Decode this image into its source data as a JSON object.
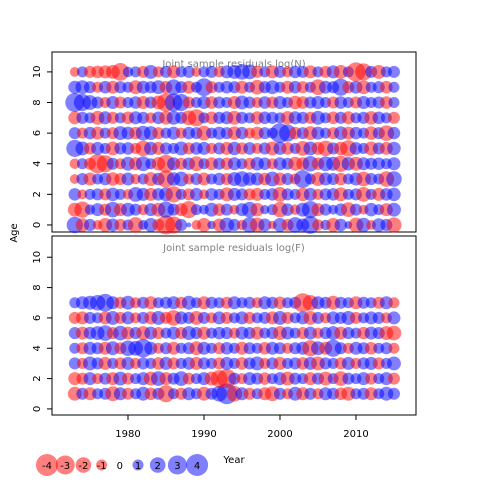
{
  "ylabel": "Age",
  "xlabel": "Year",
  "legend": [
    -4,
    -3,
    -2,
    -1,
    0,
    1,
    2,
    3,
    4
  ],
  "chart_data": [
    {
      "type": "bubble",
      "title": "Joint sample residuals log(N)",
      "xlim": [
        1970,
        2017.9
      ],
      "ylim": [
        -0.46,
        11.3
      ],
      "yticks": [
        0,
        2,
        4,
        6,
        8,
        10
      ],
      "x": [
        1973,
        1974,
        1975,
        1976,
        1977,
        1978,
        1979,
        1980,
        1981,
        1982,
        1983,
        1984,
        1985,
        1986,
        1987,
        1988,
        1989,
        1990,
        1991,
        1992,
        1993,
        1994,
        1995,
        1996,
        1997,
        1998,
        1999,
        2000,
        2001,
        2002,
        2003,
        2004,
        2005,
        2006,
        2007,
        2008,
        2009,
        2010,
        2011,
        2012,
        2013,
        2014,
        2015
      ],
      "ages": [
        0,
        1,
        2,
        3,
        4,
        5,
        6,
        7,
        8,
        9,
        10
      ],
      "values": [
        [
          2.2,
          -1.5,
          1.2,
          -0.8,
          -1.6,
          1.4,
          -1.2,
          1.0,
          -2.0,
          0.8,
          1.6,
          -1.2,
          -3.0,
          -2.4,
          1.2,
          0.2,
          -0.8,
          -1.6,
          0.6,
          -1.4,
          1.8,
          1.2,
          -0.9,
          2.0,
          -1.8,
          1.4,
          -0.6,
          1.6,
          -1.2,
          2.0,
          1.4,
          2.6,
          -1.1,
          0.9,
          -1.6,
          1.3,
          0.5,
          -1.8,
          1.7,
          -0.8,
          1.5,
          1.2,
          -1.9
        ],
        [
          -1.6,
          -2.2,
          0.9,
          1.4,
          -1.2,
          2.0,
          -1.4,
          1.6,
          1.2,
          -1.0,
          1.4,
          -1.6,
          2.2,
          1.2,
          -1.4,
          -2.4,
          1.0,
          0.8,
          1.6,
          -1.3,
          1.2,
          -0.8,
          1.4,
          2.0,
          -1.5,
          0.7,
          1.0,
          -2.0,
          1.3,
          -0.9,
          1.6,
          2.4,
          -1.4,
          1.2,
          0.8,
          1.3,
          -1.8,
          1.2,
          -0.8,
          1.5,
          1.0,
          -1.4,
          1.6
        ],
        [
          1.3,
          -0.8,
          1.0,
          1.2,
          -1.2,
          1.5,
          1.0,
          -0.9,
          1.8,
          1.4,
          -1.4,
          1.3,
          1.6,
          -2.2,
          1.0,
          -1.2,
          1.4,
          -0.8,
          1.3,
          1.0,
          -1.6,
          1.4,
          1.2,
          -1.2,
          -1.4,
          1.0,
          1.3,
          -1.8,
          1.2,
          1.0,
          -1.5,
          1.4,
          -1.0,
          1.2,
          1.3,
          -1.6,
          1.0,
          1.2,
          -1.8,
          1.0,
          -1.4,
          1.3,
          1.5
        ],
        [
          -0.8,
          1.2,
          -1.4,
          1.0,
          1.3,
          -1.5,
          -1.2,
          1.4,
          -0.9,
          1.0,
          -1.6,
          1.3,
          -2.4,
          1.5,
          1.8,
          -1.0,
          1.2,
          -1.4,
          1.0,
          1.3,
          -1.2,
          1.6,
          2.0,
          1.5,
          1.4,
          -1.3,
          1.8,
          -1.4,
          1.2,
          -1.0,
          2.6,
          1.0,
          -1.6,
          1.4,
          1.2,
          -1.3,
          1.0,
          1.4,
          -1.8,
          1.2,
          1.0,
          -2.0,
          2.0
        ],
        [
          -0.9,
          1.0,
          -1.2,
          -3.0,
          -2.4,
          1.2,
          -1.0,
          1.6,
          -1.4,
          1.8,
          1.0,
          -1.5,
          -2.6,
          1.4,
          -1.2,
          1.3,
          -1.8,
          1.0,
          -1.4,
          1.2,
          -1.3,
          1.4,
          1.0,
          -1.2,
          1.5,
          1.3,
          -1.0,
          1.4,
          1.2,
          -1.6,
          -1.4,
          2.0,
          -1.3,
          1.8,
          1.6,
          -2.2,
          1.5,
          -1.6,
          1.4,
          1.2,
          1.3,
          1.0,
          1.4
        ],
        [
          2.4,
          1.6,
          -1.2,
          1.4,
          1.0,
          -1.6,
          1.2,
          1.3,
          -1.0,
          -2.0,
          1.5,
          -1.4,
          1.2,
          1.0,
          1.6,
          -1.2,
          1.3,
          1.4,
          -1.0,
          1.2,
          -1.4,
          1.5,
          -1.2,
          1.3,
          -1.0,
          1.2,
          -1.6,
          1.4,
          -1.3,
          1.0,
          -1.8,
          1.6,
          -1.4,
          -2.0,
          1.2,
          -1.5,
          -2.2,
          1.3,
          1.0,
          -1.6,
          1.2,
          -1.4,
          1.5
        ],
        [
          1.2,
          -1.0,
          1.3,
          -1.4,
          1.0,
          -1.2,
          1.6,
          1.4,
          -1.3,
          1.8,
          1.6,
          -1.2,
          1.0,
          1.4,
          -1.0,
          1.3,
          1.2,
          -1.8,
          1.0,
          1.4,
          1.2,
          -1.5,
          1.3,
          -1.0,
          -1.4,
          1.2,
          1.0,
          3.2,
          2.4,
          -1.3,
          1.2,
          -1.6,
          1.4,
          1.0,
          -1.2,
          1.5,
          -1.4,
          1.3,
          1.0,
          -1.5,
          1.2,
          -2.0,
          1.3
        ],
        [
          -1.4,
          1.2,
          1.0,
          -1.6,
          1.4,
          -1.2,
          1.0,
          -1.3,
          1.4,
          1.2,
          -1.0,
          1.3,
          -1.5,
          1.6,
          1.2,
          -1.8,
          -2.4,
          1.0,
          -1.3,
          1.2,
          1.4,
          -1.6,
          1.2,
          1.0,
          -1.4,
          1.3,
          1.2,
          1.0,
          -1.5,
          1.4,
          1.2,
          -1.2,
          1.6,
          1.0,
          -1.3,
          1.2,
          -1.4,
          1.0,
          1.2,
          -1.5,
          1.3,
          1.0,
          -1.2
        ],
        [
          3.0,
          2.4,
          1.8,
          1.2,
          -1.0,
          1.4,
          -1.2,
          1.0,
          1.3,
          -1.4,
          1.2,
          -1.6,
          -2.8,
          2.6,
          2.4,
          -1.2,
          1.0,
          1.4,
          -1.3,
          1.2,
          1.0,
          -1.4,
          1.6,
          1.2,
          -1.0,
          1.3,
          -1.2,
          1.4,
          1.0,
          -1.5,
          -1.3,
          1.2,
          1.4,
          1.0,
          -1.2,
          1.3,
          1.0,
          -1.2,
          1.4,
          1.0,
          1.2,
          -1.3,
          1.0
        ],
        [
          1.4,
          1.6,
          1.2,
          -1.0,
          1.3,
          -1.4,
          1.2,
          1.0,
          -1.6,
          1.4,
          1.2,
          1.6,
          -1.3,
          2.0,
          1.2,
          -1.4,
          1.0,
          2.6,
          -1.2,
          1.0,
          1.3,
          1.2,
          -1.4,
          1.0,
          -1.8,
          1.2,
          1.6,
          1.0,
          -1.4,
          1.3,
          -1.2,
          1.0,
          -2.0,
          1.4,
          1.2,
          2.4,
          -1.2,
          1.4,
          -1.6,
          1.0,
          1.2,
          -1.3,
          1.0
        ],
        [
          -0.8,
          1.0,
          -1.2,
          -1.3,
          -1.4,
          -1.6,
          -2.6,
          0.9,
          1.0,
          -1.2,
          1.6,
          -1.0,
          1.2,
          -1.4,
          1.0,
          1.2,
          -0.8,
          1.0,
          1.2,
          -1.0,
          1.4,
          1.6,
          2.0,
          1.8,
          -1.2,
          1.0,
          -1.4,
          1.2,
          -1.0,
          1.3,
          1.2,
          -1.4,
          1.0,
          -1.2,
          1.4,
          -1.6,
          1.0,
          -3.0,
          -2.4,
          1.2,
          -1.6,
          1.0,
          1.2
        ]
      ]
    },
    {
      "type": "bubble",
      "title": "Joint sample residuals log(F)",
      "xlim": [
        1970,
        2017.9
      ],
      "ylim": [
        -0.4,
        11.4
      ],
      "yticks": [
        0,
        2,
        4,
        6,
        8,
        10
      ],
      "xticks": [
        1980,
        1990,
        2000,
        2010
      ],
      "x": [
        1973,
        1974,
        1975,
        1976,
        1977,
        1978,
        1979,
        1980,
        1981,
        1982,
        1983,
        1984,
        1985,
        1986,
        1987,
        1988,
        1989,
        1990,
        1991,
        1992,
        1993,
        1994,
        1995,
        1996,
        1997,
        1998,
        1999,
        2000,
        2001,
        2002,
        2003,
        2004,
        2005,
        2006,
        2007,
        2008,
        2009,
        2010,
        2011,
        2012,
        2013,
        2014,
        2015
      ],
      "ages": [
        1,
        2,
        3,
        4,
        5,
        6,
        7
      ],
      "values": [
        [
          -1.6,
          1.2,
          -1.4,
          1.0,
          1.2,
          -1.8,
          1.4,
          -1.2,
          1.0,
          1.6,
          -1.3,
          1.2,
          -2.4,
          1.0,
          -1.2,
          1.4,
          1.0,
          -1.6,
          1.2,
          2.0,
          3.6,
          -2.0,
          1.4,
          -1.2,
          1.0,
          -1.4,
          -1.8,
          1.2,
          -1.0,
          1.6,
          -1.4,
          1.2,
          -1.0,
          1.4,
          1.2,
          -1.3,
          -1.6,
          1.0,
          1.2,
          -1.4,
          1.0,
          1.6,
          1.2
        ],
        [
          -1.4,
          -1.2,
          1.4,
          -1.0,
          1.2,
          -1.4,
          1.6,
          -1.2,
          1.0,
          1.4,
          -1.6,
          1.8,
          -1.4,
          1.2,
          1.8,
          -1.2,
          1.0,
          1.4,
          -1.6,
          -2.4,
          -3.0,
          1.2,
          -1.0,
          1.4,
          1.2,
          -1.3,
          1.0,
          1.4,
          -1.6,
          1.2,
          1.0,
          -1.4,
          1.2,
          -1.6,
          1.0,
          -1.8,
          1.2,
          1.0,
          1.4,
          -1.2,
          1.0,
          1.4,
          -1.2
        ],
        [
          1.2,
          -1.0,
          1.6,
          1.2,
          -1.4,
          1.0,
          -1.2,
          1.4,
          -1.0,
          1.2,
          1.0,
          -1.3,
          1.4,
          -1.2,
          1.0,
          1.3,
          -1.4,
          1.2,
          1.0,
          -1.2,
          1.4,
          1.0,
          -1.3,
          1.2,
          1.6,
          -1.0,
          1.2,
          -1.4,
          1.0,
          1.2,
          -1.3,
          1.4,
          -1.6,
          1.2,
          1.0,
          -1.2,
          1.4,
          -1.0,
          1.2,
          1.4,
          -1.2,
          1.0,
          1.6
        ],
        [
          1.0,
          -1.2,
          1.4,
          1.2,
          -1.4,
          1.6,
          -1.2,
          2.0,
          1.8,
          2.8,
          1.4,
          -1.0,
          1.2,
          -1.4,
          1.0,
          1.2,
          -1.6,
          1.4,
          1.0,
          -1.2,
          1.3,
          1.0,
          -1.4,
          1.2,
          1.0,
          -1.3,
          1.4,
          1.2,
          -1.0,
          1.2,
          1.4,
          -2.2,
          1.6,
          -1.4,
          2.4,
          1.2,
          -1.0,
          1.4,
          1.2,
          -1.3,
          1.0,
          1.2,
          -1.0
        ],
        [
          1.2,
          -1.4,
          1.3,
          1.6,
          2.0,
          -1.2,
          1.8,
          -1.4,
          1.2,
          -1.6,
          1.4,
          -1.2,
          1.0,
          1.4,
          -1.2,
          1.6,
          1.2,
          -1.4,
          1.0,
          1.3,
          1.2,
          -1.0,
          1.4,
          1.2,
          -1.4,
          1.0,
          1.2,
          -1.6,
          1.4,
          1.0,
          -1.2,
          1.4,
          -1.0,
          1.2,
          1.6,
          -1.4,
          1.2,
          1.0,
          -1.3,
          1.4,
          1.2,
          -1.6,
          -1.8
        ],
        [
          -1.2,
          -1.4,
          1.2,
          1.0,
          -1.4,
          1.6,
          -1.2,
          1.4,
          -1.0,
          1.2,
          -1.4,
          1.6,
          -1.2,
          -2.0,
          1.4,
          1.2,
          -1.6,
          1.2,
          -1.0,
          1.4,
          -1.2,
          1.0,
          1.4,
          -1.2,
          1.0,
          1.2,
          -1.4,
          1.6,
          -1.2,
          1.0,
          1.4,
          -1.6,
          1.2,
          -1.0,
          1.4,
          1.2,
          1.6,
          -1.2,
          1.0,
          1.4,
          1.2,
          -1.0,
          1.4
        ],
        [
          1.0,
          1.4,
          1.6,
          2.0,
          2.6,
          1.4,
          -1.2,
          1.6,
          -1.0,
          1.2,
          -1.4,
          1.0,
          1.2,
          1.4,
          -1.2,
          1.6,
          1.0,
          -1.4,
          1.2,
          1.0,
          -1.2,
          1.4,
          1.0,
          1.2,
          -1.0,
          1.4,
          1.2,
          -1.3,
          1.0,
          1.2,
          -3.0,
          -2.0,
          1.4,
          1.2,
          -1.6,
          1.2,
          1.0,
          -1.4,
          1.2,
          1.0,
          -1.2,
          1.4,
          -1.0
        ]
      ]
    }
  ]
}
